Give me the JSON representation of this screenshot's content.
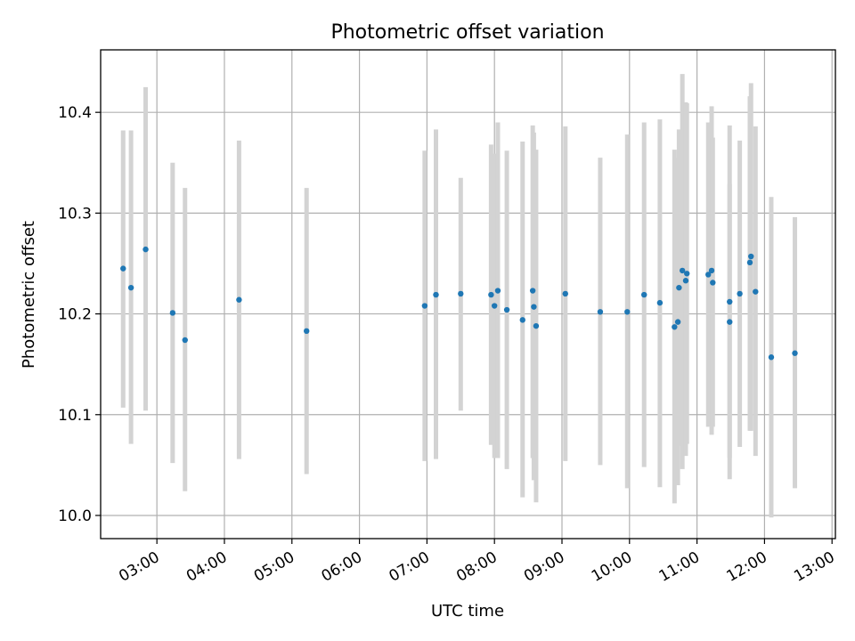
{
  "chart_data": {
    "type": "scatter",
    "title": "Photometric offset variation",
    "xlabel": "UTC time",
    "ylabel": "Photometric offset",
    "x_ticks": [
      "03:00",
      "04:00",
      "05:00",
      "06:00",
      "07:00",
      "08:00",
      "09:00",
      "10:00",
      "11:00",
      "12:00",
      "13:00"
    ],
    "y_ticks": [
      "10.0",
      "10.1",
      "10.2",
      "10.3",
      "10.4"
    ],
    "xlim": [
      "02:10",
      "13:03"
    ],
    "ylim": [
      9.977,
      10.462
    ],
    "grid": true,
    "point_color": "#1f77b4",
    "errorbar_color": "#d3d3d3",
    "points": [
      {
        "t": "02:30",
        "y": 10.245,
        "lo": 10.107,
        "hi": 10.382
      },
      {
        "t": "02:37",
        "y": 10.226,
        "lo": 10.071,
        "hi": 10.382
      },
      {
        "t": "02:50",
        "y": 10.264,
        "lo": 10.104,
        "hi": 10.425
      },
      {
        "t": "03:14",
        "y": 10.201,
        "lo": 10.052,
        "hi": 10.35
      },
      {
        "t": "03:25",
        "y": 10.174,
        "lo": 10.024,
        "hi": 10.325
      },
      {
        "t": "04:13",
        "y": 10.214,
        "lo": 10.056,
        "hi": 10.372
      },
      {
        "t": "05:13",
        "y": 10.183,
        "lo": 10.041,
        "hi": 10.325
      },
      {
        "t": "06:58",
        "y": 10.208,
        "lo": 10.054,
        "hi": 10.362
      },
      {
        "t": "07:08",
        "y": 10.219,
        "lo": 10.056,
        "hi": 10.383
      },
      {
        "t": "07:30",
        "y": 10.22,
        "lo": 10.104,
        "hi": 10.335
      },
      {
        "t": "07:57",
        "y": 10.219,
        "lo": 10.07,
        "hi": 10.368
      },
      {
        "t": "08:00",
        "y": 10.208,
        "lo": 10.057,
        "hi": 10.359
      },
      {
        "t": "08:03",
        "y": 10.223,
        "lo": 10.057,
        "hi": 10.39
      },
      {
        "t": "08:11",
        "y": 10.204,
        "lo": 10.046,
        "hi": 10.362
      },
      {
        "t": "08:25",
        "y": 10.194,
        "lo": 10.018,
        "hi": 10.371
      },
      {
        "t": "08:34",
        "y": 10.223,
        "lo": 10.057,
        "hi": 10.387
      },
      {
        "t": "08:35",
        "y": 10.207,
        "lo": 10.035,
        "hi": 10.38
      },
      {
        "t": "08:37",
        "y": 10.188,
        "lo": 10.013,
        "hi": 10.363
      },
      {
        "t": "09:03",
        "y": 10.22,
        "lo": 10.054,
        "hi": 10.386
      },
      {
        "t": "09:34",
        "y": 10.202,
        "lo": 10.05,
        "hi": 10.355
      },
      {
        "t": "09:58",
        "y": 10.202,
        "lo": 10.027,
        "hi": 10.378
      },
      {
        "t": "10:13",
        "y": 10.219,
        "lo": 10.048,
        "hi": 10.39
      },
      {
        "t": "10:27",
        "y": 10.211,
        "lo": 10.028,
        "hi": 10.393
      },
      {
        "t": "10:40",
        "y": 10.187,
        "lo": 10.012,
        "hi": 10.363
      },
      {
        "t": "10:43",
        "y": 10.192,
        "lo": 10.03,
        "hi": 10.355
      },
      {
        "t": "10:44",
        "y": 10.226,
        "lo": 10.069,
        "hi": 10.383
      },
      {
        "t": "10:47",
        "y": 10.243,
        "lo": 10.046,
        "hi": 10.438
      },
      {
        "t": "10:50",
        "y": 10.233,
        "lo": 10.059,
        "hi": 10.41
      },
      {
        "t": "10:51",
        "y": 10.24,
        "lo": 10.071,
        "hi": 10.409
      },
      {
        "t": "11:10",
        "y": 10.239,
        "lo": 10.088,
        "hi": 10.39
      },
      {
        "t": "11:13",
        "y": 10.243,
        "lo": 10.08,
        "hi": 10.406
      },
      {
        "t": "11:14",
        "y": 10.231,
        "lo": 10.088,
        "hi": 10.375
      },
      {
        "t": "11:29",
        "y": 10.212,
        "lo": 10.036,
        "hi": 10.387
      },
      {
        "t": "11:29",
        "y": 10.192,
        "lo": 10.057,
        "hi": 10.329
      },
      {
        "t": "11:38",
        "y": 10.22,
        "lo": 10.068,
        "hi": 10.372
      },
      {
        "t": "11:47",
        "y": 10.251,
        "lo": 10.084,
        "hi": 10.416
      },
      {
        "t": "11:48",
        "y": 10.257,
        "lo": 10.084,
        "hi": 10.429
      },
      {
        "t": "11:52",
        "y": 10.222,
        "lo": 10.059,
        "hi": 10.386
      },
      {
        "t": "12:06",
        "y": 10.157,
        "lo": 9.998,
        "hi": 10.316
      },
      {
        "t": "12:27",
        "y": 10.161,
        "lo": 10.027,
        "hi": 10.296
      }
    ]
  }
}
